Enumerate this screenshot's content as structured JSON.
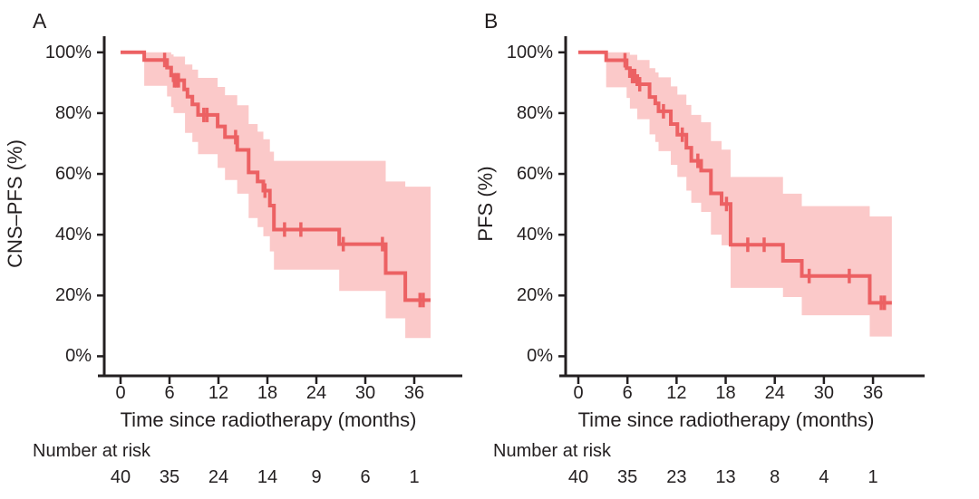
{
  "figure": {
    "background": "#ffffff"
  },
  "colors": {
    "curve": "#ec6163",
    "band": "#fbc9c9",
    "axis": "#231f20",
    "text": "#231f20"
  },
  "chart_data": [
    {
      "type": "line",
      "subtype": "kaplan_meier_step",
      "panel_label": "A",
      "ylabel": "CNS–PFS (%)",
      "xlabel": "Time since radiotherapy (months)",
      "xlim_months": [
        0,
        42
      ],
      "ylim_pct": [
        0,
        100
      ],
      "grid": false,
      "legend": "none",
      "x_ticks": [
        {
          "t": 0,
          "label": "0"
        },
        {
          "t": 6,
          "label": "6"
        },
        {
          "t": 12,
          "label": "12"
        },
        {
          "t": 18,
          "label": "18"
        },
        {
          "t": 24,
          "label": "24"
        },
        {
          "t": 30,
          "label": "30"
        },
        {
          "t": 36,
          "label": "36"
        }
      ],
      "y_ticks": [
        {
          "pct": 0,
          "label": "0%"
        },
        {
          "pct": 20,
          "label": "20%"
        },
        {
          "pct": 40,
          "label": "40%"
        },
        {
          "pct": 60,
          "label": "60%"
        },
        {
          "pct": 80,
          "label": "80%"
        },
        {
          "pct": 100,
          "label": "100%"
        }
      ],
      "end_time": 38.0,
      "steps_pct": [
        [
          0,
          100
        ],
        [
          2.9,
          97.5
        ],
        [
          5.7,
          95.0
        ],
        [
          6.2,
          92.4
        ],
        [
          6.5,
          90.8
        ],
        [
          7.8,
          87.8
        ],
        [
          8.2,
          85.4
        ],
        [
          8.8,
          82.9
        ],
        [
          9.5,
          79.4
        ],
        [
          11.9,
          75.6
        ],
        [
          12.8,
          72.1
        ],
        [
          14.3,
          67.9
        ],
        [
          15.7,
          60.5
        ],
        [
          16.8,
          57.5
        ],
        [
          17.5,
          54.5
        ],
        [
          18.3,
          49.6
        ],
        [
          18.8,
          41.7
        ],
        [
          26.8,
          36.9
        ],
        [
          32.5,
          27.4
        ],
        [
          34.9,
          18.5
        ]
      ],
      "censor_marks": [
        [
          5.4,
          97.5
        ],
        [
          6.6,
          90.8
        ],
        [
          6.85,
          90.8
        ],
        [
          7.1,
          90.8
        ],
        [
          10.2,
          79.4
        ],
        [
          10.6,
          79.4
        ],
        [
          14.1,
          72.1
        ],
        [
          17.7,
          54.5
        ],
        [
          20.1,
          41.7
        ],
        [
          22.1,
          41.7
        ],
        [
          27.3,
          36.9
        ],
        [
          32.1,
          36.9
        ],
        [
          36.7,
          18.5
        ],
        [
          37.1,
          18.5
        ]
      ],
      "ci_band": [
        [
          2.9,
          100,
          89
        ],
        [
          5.7,
          100,
          85.5
        ],
        [
          6.2,
          99.3,
          82
        ],
        [
          6.5,
          98.6,
          80
        ],
        [
          7.9,
          96,
          73.5
        ],
        [
          8.8,
          94.3,
          70.5
        ],
        [
          9.5,
          91.6,
          66.5
        ],
        [
          11.9,
          88.6,
          62
        ],
        [
          12.8,
          85.9,
          58
        ],
        [
          14.3,
          82.6,
          53.5
        ],
        [
          15.7,
          76.4,
          45.5
        ],
        [
          16.8,
          73.9,
          42.5
        ],
        [
          17.5,
          71.4,
          39.5
        ],
        [
          18.3,
          67.3,
          34.5
        ],
        [
          18.8,
          64.3,
          28.5
        ],
        [
          26.8,
          64.3,
          21.5
        ],
        [
          32.5,
          57.5,
          12.5
        ],
        [
          34.9,
          55.8,
          6
        ]
      ],
      "risk_label": "Number at risk",
      "risk_values": [
        40,
        35,
        24,
        14,
        9,
        6,
        1
      ]
    },
    {
      "type": "line",
      "subtype": "kaplan_meier_step",
      "panel_label": "B",
      "ylabel": "PFS (%)",
      "xlabel": "Time since radiotherapy (months)",
      "xlim_months": [
        0,
        42
      ],
      "ylim_pct": [
        0,
        100
      ],
      "grid": false,
      "legend": "none",
      "x_ticks": [
        {
          "t": 0,
          "label": "0"
        },
        {
          "t": 6,
          "label": "6"
        },
        {
          "t": 12,
          "label": "12"
        },
        {
          "t": 18,
          "label": "18"
        },
        {
          "t": 24,
          "label": "24"
        },
        {
          "t": 30,
          "label": "30"
        },
        {
          "t": 36,
          "label": "36"
        }
      ],
      "y_ticks": [
        {
          "pct": 0,
          "label": "0%"
        },
        {
          "pct": 20,
          "label": "20%"
        },
        {
          "pct": 40,
          "label": "40%"
        },
        {
          "pct": 60,
          "label": "60%"
        },
        {
          "pct": 80,
          "label": "80%"
        },
        {
          "pct": 100,
          "label": "100%"
        }
      ],
      "end_time": 38.3,
      "steps_pct": [
        [
          0,
          100
        ],
        [
          3.4,
          97.4
        ],
        [
          5.9,
          94.8
        ],
        [
          6.3,
          92.2
        ],
        [
          7.2,
          89.5
        ],
        [
          8.7,
          85.3
        ],
        [
          9.4,
          83.2
        ],
        [
          9.8,
          80.6
        ],
        [
          11.3,
          76.4
        ],
        [
          12.1,
          72.9
        ],
        [
          13.2,
          68.6
        ],
        [
          13.8,
          64.3
        ],
        [
          15.0,
          61.1
        ],
        [
          16.2,
          53.6
        ],
        [
          17.5,
          50.1
        ],
        [
          18.6,
          36.7
        ],
        [
          25.0,
          31.4
        ],
        [
          27.3,
          26.4
        ],
        [
          35.6,
          17.6
        ]
      ],
      "censor_marks": [
        [
          5.7,
          97.4
        ],
        [
          6.6,
          92.2
        ],
        [
          6.9,
          92.2
        ],
        [
          7.5,
          89.5
        ],
        [
          10.4,
          80.6
        ],
        [
          12.7,
          72.9
        ],
        [
          14.6,
          64.3
        ],
        [
          18.1,
          50.1
        ],
        [
          20.7,
          36.7
        ],
        [
          22.7,
          36.7
        ],
        [
          28.2,
          26.4
        ],
        [
          33.1,
          26.4
        ],
        [
          37.0,
          17.6
        ],
        [
          37.4,
          17.6
        ]
      ],
      "ci_band": [
        [
          3.4,
          100,
          88.5
        ],
        [
          5.9,
          100,
          85
        ],
        [
          6.3,
          99.2,
          81.5
        ],
        [
          7.2,
          97.5,
          78
        ],
        [
          8.7,
          94.8,
          73
        ],
        [
          9.4,
          93.4,
          70.5
        ],
        [
          9.8,
          91.8,
          67.5
        ],
        [
          11.3,
          88.8,
          63
        ],
        [
          12.1,
          86.1,
          59
        ],
        [
          13.2,
          82.7,
          54.5
        ],
        [
          13.8,
          79.4,
          50.5
        ],
        [
          15.0,
          77,
          47.5
        ],
        [
          16.2,
          70.8,
          40
        ],
        [
          17.5,
          68,
          36.5
        ],
        [
          18.6,
          59,
          22.5
        ],
        [
          25.0,
          53.5,
          19.5
        ],
        [
          27.3,
          49.4,
          13.5
        ],
        [
          35.6,
          46,
          6.5
        ]
      ],
      "risk_label": "Number at risk",
      "risk_values": [
        40,
        35,
        23,
        13,
        8,
        4,
        1
      ]
    }
  ]
}
